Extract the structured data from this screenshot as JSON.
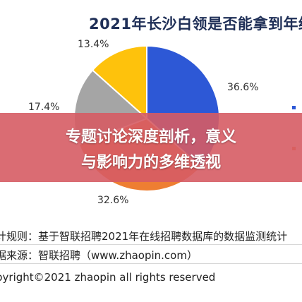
{
  "chart_data": {
    "type": "pie",
    "title": "2021年长沙白领是否能拿到年终",
    "slices": [
      {
        "label": "36.6%",
        "value": 36.6,
        "color": "#2d58d6"
      },
      {
        "label": "32.6%",
        "value": 32.6,
        "color": "#ee7e32"
      },
      {
        "label": "17.4%",
        "value": 17.4,
        "color": "#a5a5a5"
      },
      {
        "label": "13.4%",
        "value": 13.4,
        "color": "#fec20c"
      }
    ],
    "legend_colors": [
      "#2d58d6",
      "#ee7e32"
    ],
    "legend_placement": "right"
  },
  "banner": {
    "line1": "专题讨论深度剖析，意义",
    "line2": "与影响力的多维透视"
  },
  "footer": {
    "stat_rule": "计规则：基于智联招聘2021年在线招聘数据库的数据监测统计",
    "source": "据来源：智联招聘（www.zhaopin.com）",
    "copyright": "pyright©2021 zhaopin all rights reserved"
  }
}
